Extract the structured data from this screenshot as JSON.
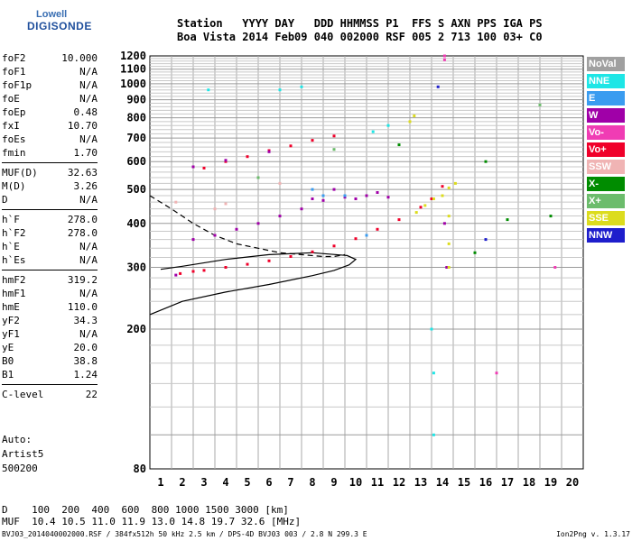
{
  "logo": {
    "line1": "Lowell",
    "line2": "DIGISONDE"
  },
  "header": {
    "line1": "Station   YYYY DAY   DDD HHMMSS P1  FFS S AXN PPS IGA PS",
    "line2": "Boa Vista 2014 Feb09 040 002000 RSF 005 2 713 100 03+ C0"
  },
  "params_groups": [
    [
      [
        "foF2",
        "10.000"
      ],
      [
        "foF1",
        "N/A"
      ],
      [
        "foF1p",
        "N/A"
      ],
      [
        "foE",
        "N/A"
      ],
      [
        "foEp",
        "0.48"
      ],
      [
        "fxI",
        "10.70"
      ],
      [
        "foEs",
        "N/A"
      ],
      [
        "fmin",
        "1.70"
      ]
    ],
    [
      [
        "MUF(D)",
        "32.63"
      ],
      [
        "M(D)",
        "3.26"
      ],
      [
        "D",
        "N/A"
      ]
    ],
    [
      [
        "h`F",
        "278.0"
      ],
      [
        "h`F2",
        "278.0"
      ],
      [
        "h`E",
        "N/A"
      ],
      [
        "h`Es",
        "N/A"
      ]
    ],
    [
      [
        "hmF2",
        "319.2"
      ],
      [
        "hmF1",
        "N/A"
      ],
      [
        "hmE",
        "110.0"
      ],
      [
        "yF2",
        "34.3"
      ],
      [
        "yF1",
        "N/A"
      ],
      [
        "yE",
        "20.0"
      ],
      [
        "B0",
        "38.8"
      ],
      [
        "B1",
        "1.24"
      ]
    ],
    [
      [
        "C-level",
        "22"
      ]
    ]
  ],
  "auto": {
    "l1": "Auto:",
    "l2": "Artist5",
    "l3": "500200"
  },
  "legend": [
    {
      "label": "NoVal",
      "color": "#a0a0a0"
    },
    {
      "label": "NNE",
      "color": "#1ee6e6"
    },
    {
      "label": "E",
      "color": "#3a9cf0"
    },
    {
      "label": "W",
      "color": "#a000a8"
    },
    {
      "label": "Vo-",
      "color": "#f03cb4"
    },
    {
      "label": "Vo+",
      "color": "#f0002a"
    },
    {
      "label": "SSW",
      "color": "#f0b4b4"
    },
    {
      "label": "X-",
      "color": "#008c00"
    },
    {
      "label": "X+",
      "color": "#6cbc6c"
    },
    {
      "label": "SSE",
      "color": "#dcdc1e"
    },
    {
      "label": "NNW",
      "color": "#1e1ecc"
    }
  ],
  "chart_data": {
    "type": "scatter",
    "xlim": [
      0.5,
      20.5
    ],
    "ylim": [
      80,
      1200
    ],
    "x_ticks": [
      1,
      2,
      3,
      4,
      5,
      6,
      7,
      8,
      9,
      10,
      11,
      12,
      13,
      14,
      15,
      16,
      17,
      18,
      19,
      20
    ],
    "y_ticks": [
      80,
      200,
      300,
      400,
      500,
      600,
      700,
      800,
      900,
      1000,
      1100,
      1200
    ],
    "y_scale": "log",
    "grid": true,
    "series": [
      {
        "name": "Vo+",
        "color": "#f0002a",
        "points": [
          [
            1.9,
            288
          ],
          [
            2.5,
            292
          ],
          [
            3,
            294
          ],
          [
            4,
            300
          ],
          [
            5,
            306
          ],
          [
            6,
            313
          ],
          [
            7,
            322
          ],
          [
            8,
            332
          ],
          [
            9,
            345
          ],
          [
            10,
            362
          ],
          [
            11,
            385
          ],
          [
            12,
            410
          ],
          [
            13,
            445
          ],
          [
            13.5,
            470
          ],
          [
            14,
            510
          ],
          [
            3,
            575
          ],
          [
            4,
            600
          ],
          [
            5,
            620
          ],
          [
            6,
            645
          ],
          [
            7,
            665
          ],
          [
            8,
            690
          ],
          [
            9,
            710
          ]
        ]
      },
      {
        "name": "W",
        "color": "#a000a8",
        "points": [
          [
            1.7,
            285
          ],
          [
            2.5,
            360
          ],
          [
            3.5,
            370
          ],
          [
            4.5,
            385
          ],
          [
            5.5,
            400
          ],
          [
            6.5,
            420
          ],
          [
            7.5,
            440
          ],
          [
            8.5,
            465
          ],
          [
            9.5,
            475
          ],
          [
            10.5,
            480
          ],
          [
            11.5,
            475
          ],
          [
            2.5,
            580
          ],
          [
            4,
            605
          ],
          [
            6,
            640
          ],
          [
            8,
            470
          ],
          [
            9,
            500
          ],
          [
            10,
            470
          ],
          [
            11,
            490
          ],
          [
            14.1,
            400
          ],
          [
            14.2,
            300
          ]
        ]
      },
      {
        "name": "SSE",
        "color": "#dcdc1e",
        "points": [
          [
            12.8,
            430
          ],
          [
            13.2,
            450
          ],
          [
            13.6,
            470
          ],
          [
            14,
            480
          ],
          [
            14.3,
            505
          ],
          [
            14.6,
            520
          ],
          [
            12.5,
            780
          ],
          [
            12.7,
            810
          ],
          [
            14.3,
            300
          ],
          [
            14.3,
            350
          ],
          [
            14.3,
            420
          ]
        ]
      },
      {
        "name": "NNE",
        "color": "#1ee6e6",
        "points": [
          [
            3.2,
            960
          ],
          [
            6.5,
            960
          ],
          [
            7.5,
            980
          ],
          [
            10.8,
            730
          ],
          [
            11.5,
            760
          ],
          [
            13.5,
            200
          ],
          [
            13.6,
            150
          ],
          [
            13.6,
            100
          ]
        ]
      },
      {
        "name": "E",
        "color": "#3a9cf0",
        "points": [
          [
            8,
            500
          ],
          [
            8.5,
            480
          ],
          [
            9.5,
            480
          ],
          [
            10.5,
            370
          ]
        ]
      },
      {
        "name": "SSW",
        "color": "#f0b4b4",
        "points": [
          [
            3.5,
            440
          ],
          [
            4,
            455
          ],
          [
            6.5,
            520
          ],
          [
            1.7,
            460
          ]
        ]
      },
      {
        "name": "X-",
        "color": "#008c00",
        "points": [
          [
            12,
            670
          ],
          [
            16,
            600
          ],
          [
            17,
            410
          ],
          [
            19,
            420
          ],
          [
            15.5,
            330
          ]
        ]
      },
      {
        "name": "X+",
        "color": "#6cbc6c",
        "points": [
          [
            5.5,
            540
          ],
          [
            9,
            650
          ],
          [
            18.5,
            870
          ]
        ]
      },
      {
        "name": "Vo-",
        "color": "#f03cb4",
        "points": [
          [
            14.1,
            1200
          ],
          [
            14.1,
            1170
          ],
          [
            16.5,
            150
          ],
          [
            19.2,
            300
          ]
        ]
      },
      {
        "name": "NNW",
        "color": "#1e1ecc",
        "points": [
          [
            13.8,
            980
          ],
          [
            16,
            360
          ]
        ]
      }
    ],
    "profile_curves": {
      "solid": [
        [
          0.5,
          220
        ],
        [
          2,
          240
        ],
        [
          4,
          255
        ],
        [
          6,
          268
        ],
        [
          8,
          284
        ],
        [
          9,
          294
        ],
        [
          9.7,
          305
        ],
        [
          10,
          316
        ],
        [
          9.6,
          324
        ],
        [
          8,
          330
        ],
        [
          6,
          326
        ],
        [
          4,
          316
        ],
        [
          2,
          302
        ],
        [
          1,
          296
        ]
      ],
      "dashed": [
        [
          0.5,
          480
        ],
        [
          1.5,
          440
        ],
        [
          2.5,
          400
        ],
        [
          3.5,
          370
        ],
        [
          4.5,
          350
        ],
        [
          5.5,
          340
        ],
        [
          6.5,
          330
        ],
        [
          7.5,
          326
        ],
        [
          8.5,
          322
        ],
        [
          9,
          322
        ],
        [
          9.5,
          326
        ]
      ]
    }
  },
  "footer": {
    "line1": "D    100  200  400  600  800 1000 1500 3000 [km]",
    "line2": "MUF  10.4 10.5 11.0 11.9 13.0 14.8 19.7 32.6 [MHz]",
    "left": "BVJ03_2014040002000.RSF / 384fx512h 50 kHz 2.5 km / DPS-4D BVJ03 003 / 2.8 N 299.3 E",
    "right": "Ion2Png v. 1.3.17"
  }
}
